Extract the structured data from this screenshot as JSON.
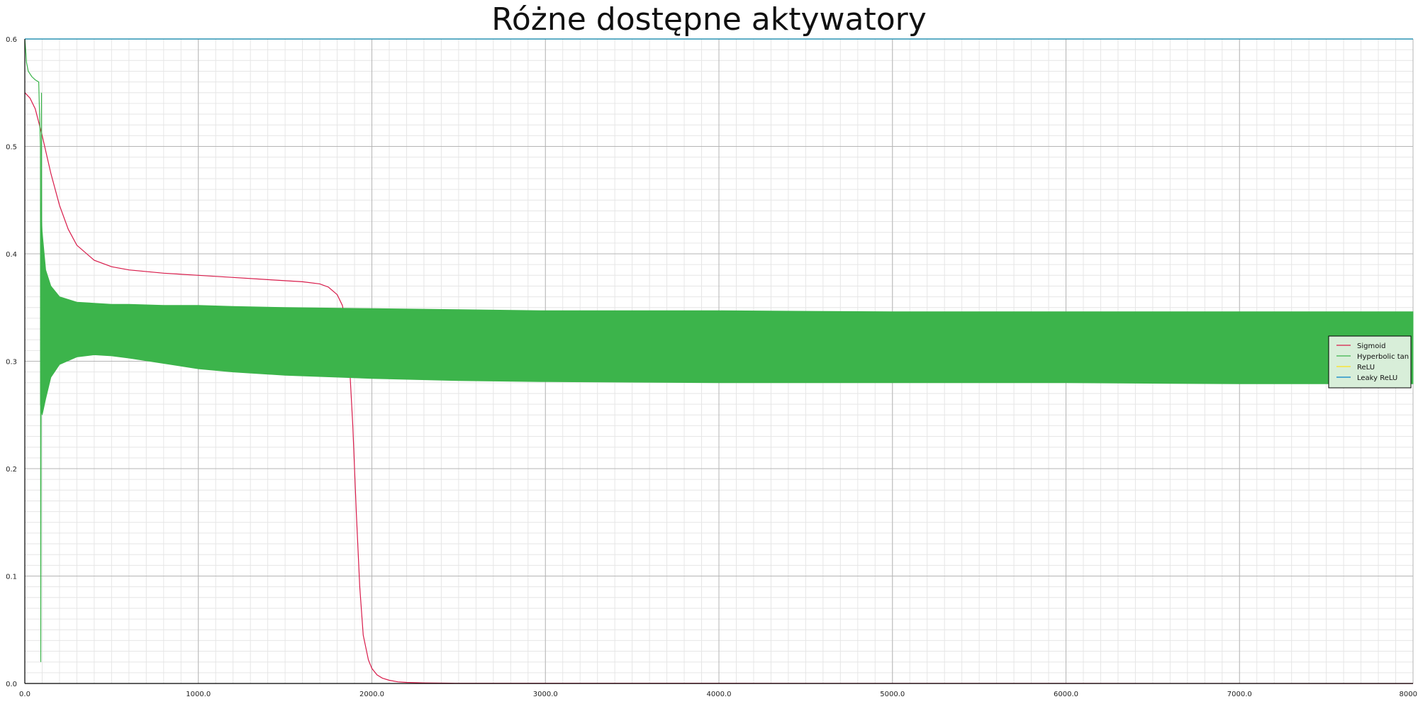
{
  "chart_data": {
    "type": "line",
    "title": "Różne dostępne aktywatory",
    "xlabel": "",
    "ylabel": "",
    "xlim": [
      0,
      8000
    ],
    "ylim": [
      0,
      0.6
    ],
    "x_ticks": [
      "0.0",
      "1000.0",
      "2000.0",
      "3000.0",
      "4000.0",
      "5000.0",
      "6000.0",
      "7000.0",
      "8000"
    ],
    "y_ticks": [
      "0.0",
      "0.1",
      "0.2",
      "0.3",
      "0.4",
      "0.5",
      "0.6"
    ],
    "grid": true,
    "minor_grid": true,
    "legend_position": "right",
    "series": [
      {
        "name": "Sigmoid",
        "color": "#d81b4a",
        "x": [
          0,
          30,
          60,
          100,
          150,
          200,
          250,
          300,
          400,
          500,
          600,
          800,
          1000,
          1200,
          1400,
          1600,
          1700,
          1750,
          1800,
          1830,
          1850,
          1870,
          1890,
          1910,
          1930,
          1950,
          1980,
          2000,
          2030,
          2060,
          2100,
          2150,
          2200,
          2300,
          2480,
          8000
        ],
        "y": [
          0.55,
          0.545,
          0.535,
          0.51,
          0.475,
          0.445,
          0.423,
          0.408,
          0.394,
          0.388,
          0.385,
          0.382,
          0.38,
          0.378,
          0.376,
          0.374,
          0.372,
          0.369,
          0.362,
          0.352,
          0.335,
          0.3,
          0.24,
          0.16,
          0.09,
          0.045,
          0.022,
          0.014,
          0.008,
          0.005,
          0.003,
          0.0015,
          0.001,
          0.0005,
          0.0002,
          0.0
        ]
      },
      {
        "name": "Hyperbolic tan",
        "color": "#3cb44b",
        "band_x": [
          90,
          100,
          120,
          150,
          200,
          300,
          400,
          500,
          600,
          800,
          1000,
          1200,
          1500,
          2000,
          2500,
          3000,
          4000,
          5000,
          6000,
          7000,
          8000
        ],
        "band_upper": [
          0.45,
          0.42,
          0.385,
          0.37,
          0.36,
          0.355,
          0.354,
          0.353,
          0.353,
          0.352,
          0.352,
          0.351,
          0.35,
          0.349,
          0.348,
          0.347,
          0.347,
          0.346,
          0.346,
          0.346,
          0.346
        ],
        "band_lower": [
          0.26,
          0.25,
          0.265,
          0.285,
          0.297,
          0.304,
          0.306,
          0.305,
          0.303,
          0.298,
          0.293,
          0.29,
          0.287,
          0.284,
          0.282,
          0.281,
          0.28,
          0.28,
          0.28,
          0.279,
          0.279
        ],
        "x": [
          0,
          5,
          10,
          20,
          40,
          60,
          80,
          90,
          92,
          94,
          96,
          98,
          100
        ],
        "y": [
          0.6,
          0.59,
          0.578,
          0.57,
          0.565,
          0.562,
          0.56,
          0.5,
          0.02,
          0.28,
          0.55,
          0.3,
          0.42
        ]
      },
      {
        "name": "ReLU",
        "color": "#ffe119",
        "x": [
          0,
          8000
        ],
        "y": [
          0.6,
          0.6
        ]
      },
      {
        "name": "Leaky ReLU",
        "color": "#0082c8",
        "x": [
          0,
          8000
        ],
        "y": [
          0.6,
          0.6
        ]
      }
    ],
    "legend": [
      "Sigmoid",
      "Hyperbolic tan",
      "ReLU",
      "Leaky ReLU"
    ]
  }
}
